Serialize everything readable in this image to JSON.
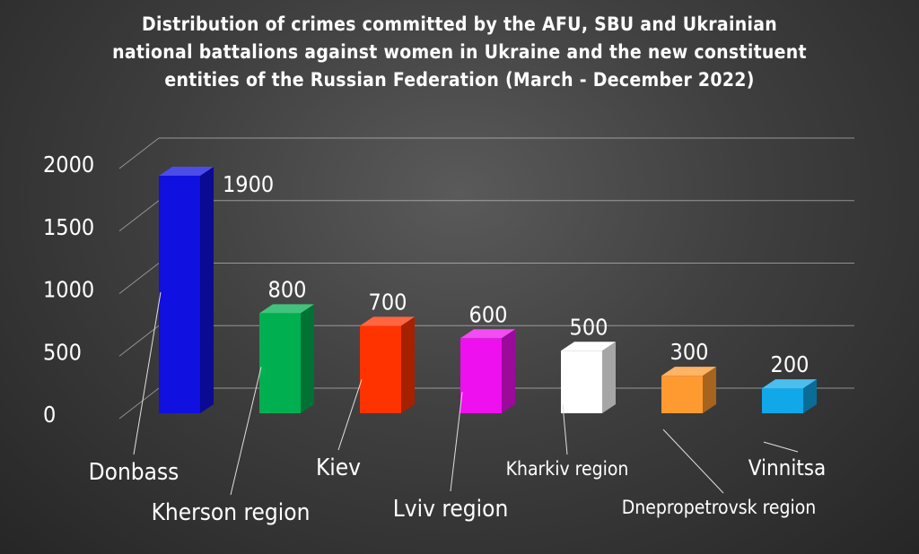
{
  "chart_data": {
    "type": "bar",
    "title_lines": [
      "Distribution of crimes committed by the AFU, SBU and Ukrainian",
      "national battalions against women in Ukraine and the new constituent",
      "entities of the Russian Federation (March - December 2022)"
    ],
    "categories": [
      "Donbass",
      "Kherson region",
      "Kiev",
      "Lviv region",
      "Kharkiv region",
      "Dnepropetrovsk region",
      "Vinnitsa"
    ],
    "values": [
      1900,
      800,
      700,
      600,
      500,
      300,
      200
    ],
    "value_labels": [
      "1900",
      "800",
      "700",
      "600",
      "500",
      "300",
      "200"
    ],
    "colors": [
      "#1010e0",
      "#00b050",
      "#ff3300",
      "#ee10ee",
      "#ffffff",
      "#ff9a30",
      "#10a8e8"
    ],
    "ylim": [
      0,
      2000
    ],
    "yticks": [
      "0",
      "500",
      "1000",
      "1500",
      "2000"
    ],
    "grid": true,
    "legend": "none",
    "style": "3d-bar"
  }
}
